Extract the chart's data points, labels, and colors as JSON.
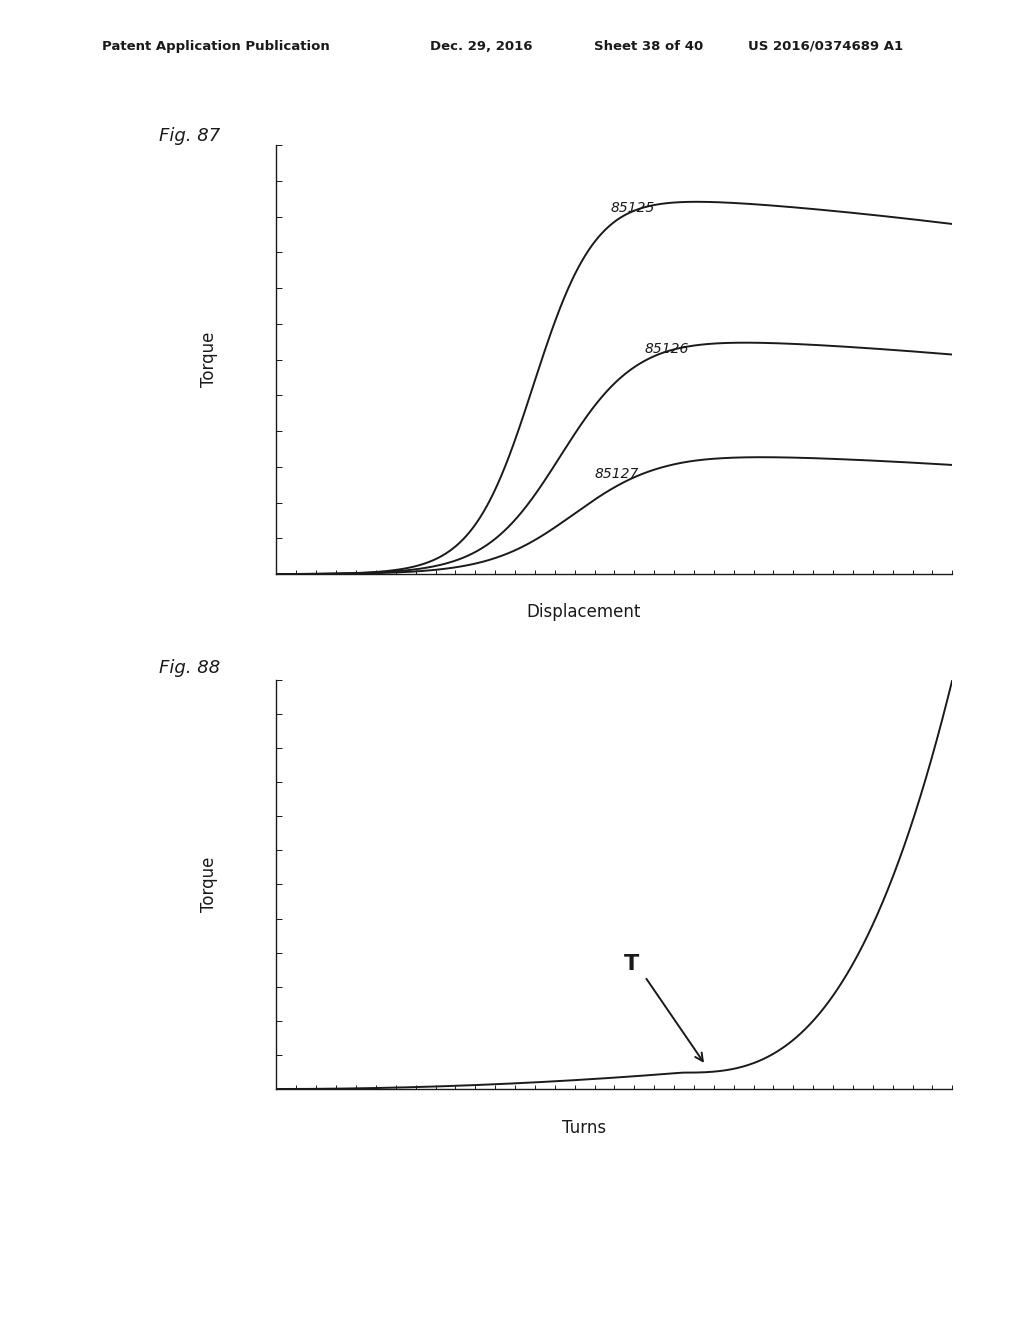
{
  "background_color": "#ffffff",
  "header_line1": "Patent Application Publication",
  "header_line2": "Dec. 29, 2016",
  "header_line3": "Sheet 38 of 40",
  "header_line4": "US 2016/0374689 A1",
  "fig1_label": "Fig. 87",
  "fig1_xlabel": "Displacement",
  "fig1_ylabel": "Torque",
  "fig1_curve_labels": [
    "85125",
    "85126",
    "85127"
  ],
  "fig2_label": "Fig. 88",
  "fig2_xlabel": "Turns",
  "fig2_ylabel": "Torque",
  "fig2_annotation": "T",
  "line_color": "#1a1a1a",
  "line_width": 1.4
}
